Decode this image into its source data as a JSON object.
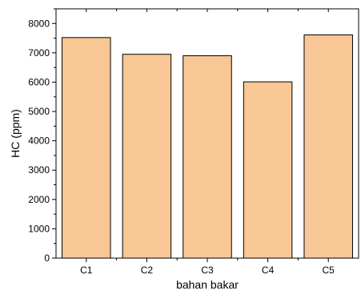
{
  "chart_data": {
    "type": "bar",
    "categories": [
      "C1",
      "C2",
      "C3",
      "C4",
      "C5"
    ],
    "values": [
      7520,
      6950,
      6900,
      6010,
      7610
    ],
    "xlabel": "bahan bakar",
    "ylabel": "HC (ppm)",
    "ylim": [
      0,
      8500
    ],
    "yticks": [
      0,
      1000,
      2000,
      3000,
      4000,
      5000,
      6000,
      7000,
      8000
    ],
    "ytick_labels": [
      "0",
      "1000",
      "2000",
      "3000",
      "4000",
      "5000",
      "6000",
      "7000",
      "8000"
    ],
    "grid": false,
    "colors": {
      "bar_fill": "#F9C696",
      "bar_edge": "#000000",
      "axis": "#000000"
    }
  }
}
